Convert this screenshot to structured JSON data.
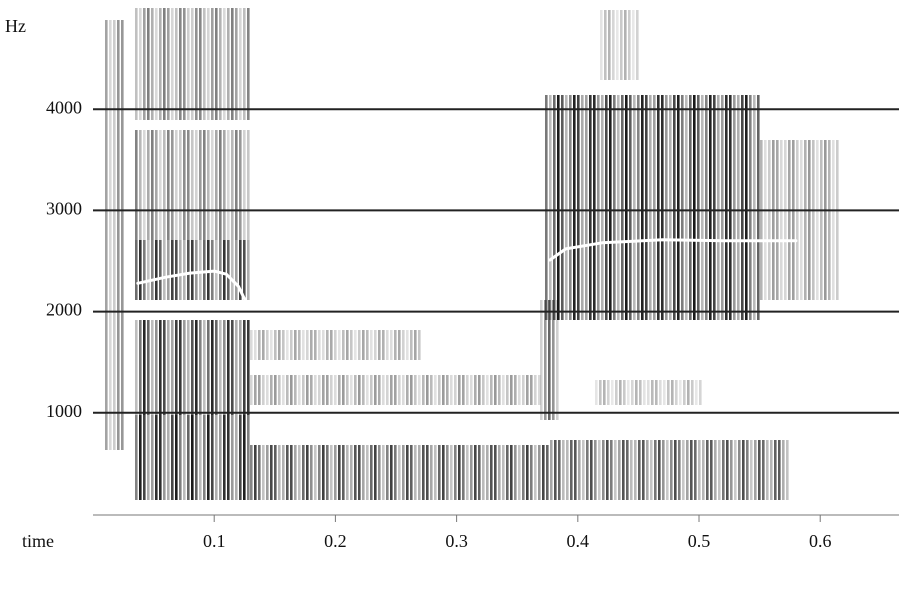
{
  "chart_data": {
    "type": "spectrogram",
    "x_label": "time",
    "y_label": "Hz",
    "xlim": [
      0,
      0.665
    ],
    "ylim": [
      0,
      5000
    ],
    "xticks": [
      0.1,
      0.2,
      0.3,
      0.4,
      0.5,
      0.6
    ],
    "yticks": [
      1000,
      2000,
      3000,
      4000
    ],
    "grid": true,
    "series": [
      {
        "color": "#ffffff",
        "x": [
          0.037,
          0.06,
          0.08,
          0.1,
          0.11,
          0.12,
          0.128
        ],
        "values": [
          2280,
          2340,
          2380,
          2400,
          2370,
          2250,
          2050
        ]
      },
      {
        "color": "#ffffff",
        "x": [
          0.377,
          0.39,
          0.42,
          0.47,
          0.52,
          0.58
        ],
        "values": [
          2510,
          2620,
          2680,
          2710,
          2700,
          2700
        ]
      }
    ]
  }
}
